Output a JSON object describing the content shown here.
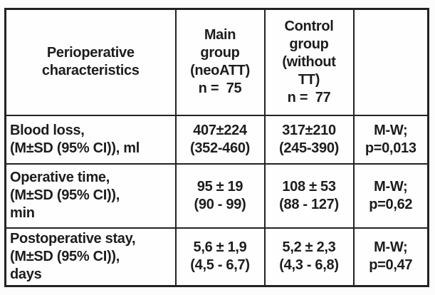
{
  "colors": {
    "border": "#232323",
    "text": "#1d1d1d",
    "background": "#fcfcfc"
  },
  "table": {
    "header": {
      "characteristics": "Perioperative\ncharacteristics",
      "main_group": "Main\ngroup\n(neoATT)\nn =  75",
      "control_group": "Control\ngroup\n(without\nTT)\nn =  77",
      "stat_test": ""
    },
    "rows": [
      {
        "label": "Blood loss,\n(M±SD (95% CI)), ml",
        "main": "407±224\n(352-460)",
        "control": "317±210\n(245-390)",
        "test": "M-W;\np=0,013"
      },
      {
        "label": "Operative time,\n(M±SD (95% CI)),\nmin",
        "main": "95 ± 19\n(90 - 99)",
        "control": "108 ± 53\n(88 - 127)",
        "test": "M-W;\np=0,62"
      },
      {
        "label": "Postoperative stay,\n(M±SD (95% CI)),\ndays",
        "main": "5,6 ± 1,9\n(4,5 - 6,7)",
        "control": "5,2 ± 2,3\n(4,3 - 6,8)",
        "test": "M-W;\np=0,47"
      }
    ]
  }
}
